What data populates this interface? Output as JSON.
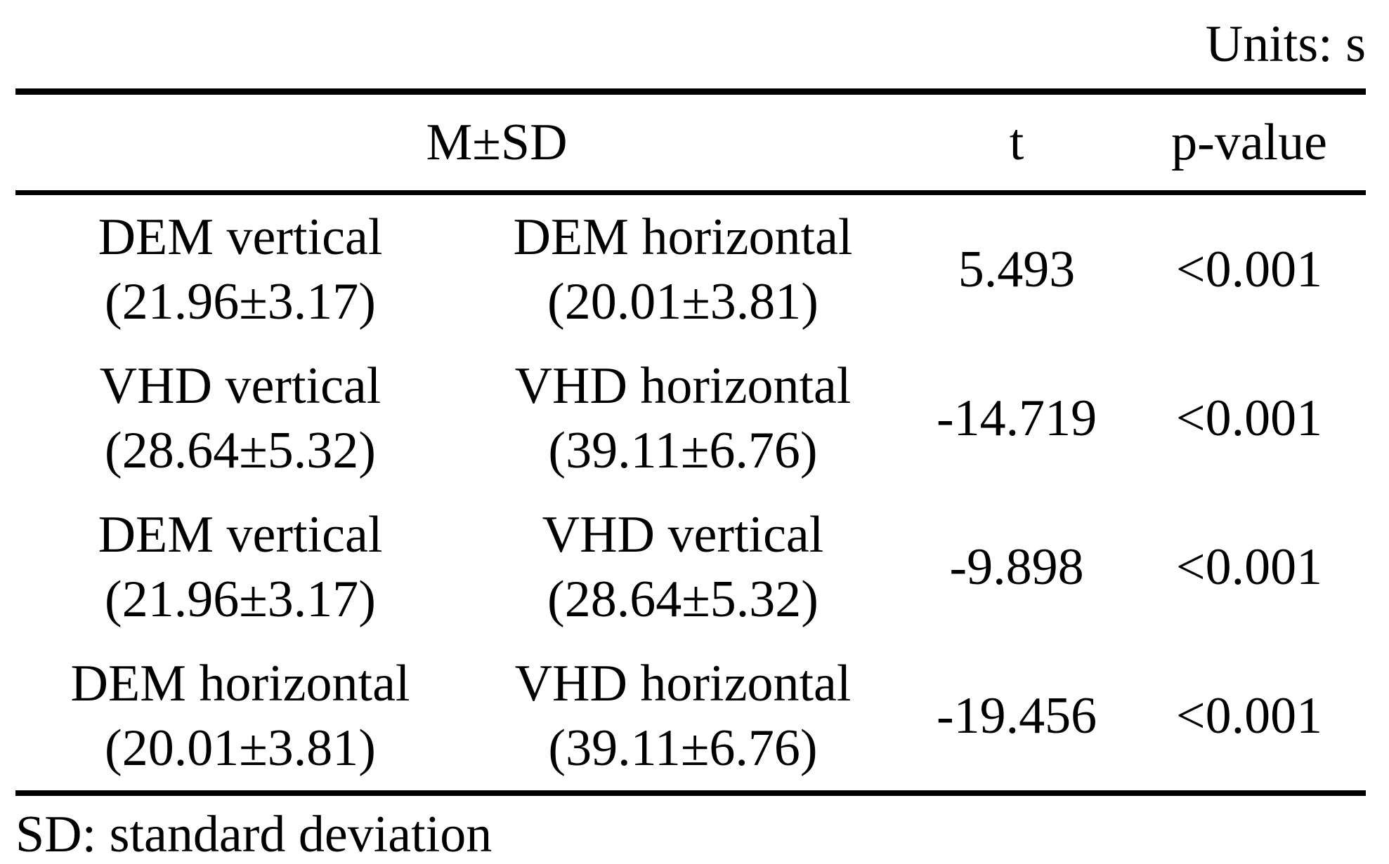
{
  "units_note": "Units: s",
  "table": {
    "header": {
      "msd": "M±SD",
      "t": "t",
      "p": "p-value"
    },
    "rows": [
      {
        "a_label": "DEM vertical",
        "a_value": "(21.96±3.17)",
        "b_label": "DEM horizontal",
        "b_value": "(20.01±3.81)",
        "t": "5.493",
        "p": "<0.001"
      },
      {
        "a_label": "VHD vertical",
        "a_value": "(28.64±5.32)",
        "b_label": "VHD horizontal",
        "b_value": "(39.11±6.76)",
        "t": "-14.719",
        "p": "<0.001"
      },
      {
        "a_label": "DEM vertical",
        "a_value": "(21.96±3.17)",
        "b_label": "VHD vertical",
        "b_value": "(28.64±5.32)",
        "t": "-9.898",
        "p": "<0.001"
      },
      {
        "a_label": "DEM horizontal",
        "a_value": "(20.01±3.81)",
        "b_label": "VHD horizontal",
        "b_value": "(39.11±6.76)",
        "t": "-19.456",
        "p": "<0.001"
      }
    ]
  },
  "footnote": "SD: standard deviation",
  "colors": {
    "text": "#000000",
    "background": "#ffffff",
    "rule": "#000000"
  }
}
